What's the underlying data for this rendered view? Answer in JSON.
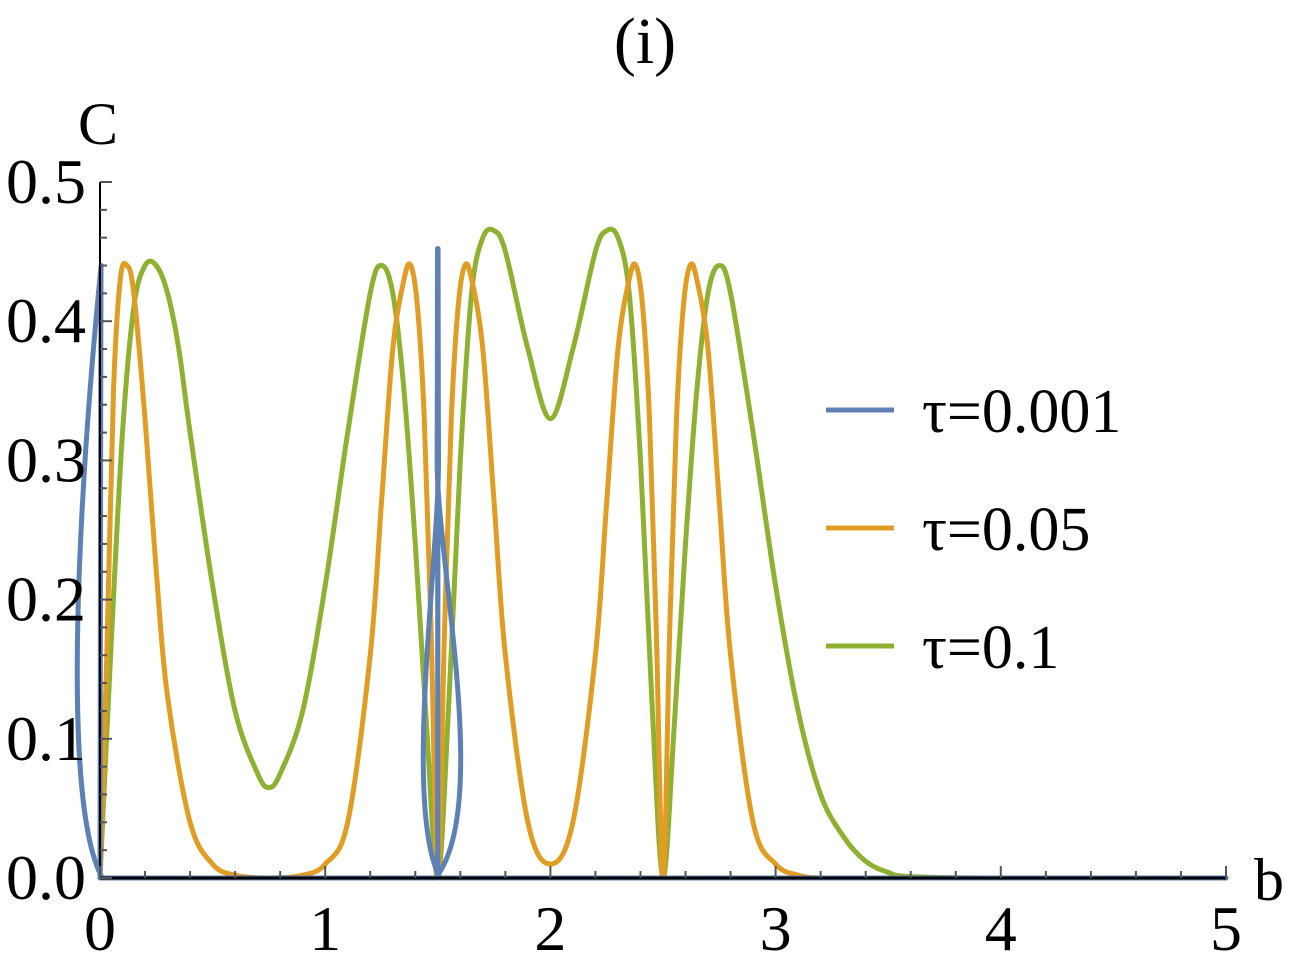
{
  "figure": {
    "panel_label": "(i)"
  },
  "chart_data": {
    "type": "line",
    "title": "(i)",
    "xlabel": "b",
    "ylabel": "C",
    "xlim": [
      0,
      5
    ],
    "ylim": [
      0,
      0.5
    ],
    "x_ticks": [
      0,
      1,
      2,
      3,
      4,
      5
    ],
    "x_tick_labels": [
      "0",
      "1",
      "2",
      "3",
      "4",
      "5"
    ],
    "y_ticks": [
      0.0,
      0.1,
      0.2,
      0.3,
      0.4,
      0.5
    ],
    "y_tick_labels": [
      "0.0",
      "0.1",
      "0.2",
      "0.3",
      "0.4",
      "0.5"
    ],
    "grid": false,
    "legend_position": "right",
    "series": [
      {
        "name": "τ=0.001",
        "color": "#5e81b5",
        "x": [
          0,
          0.005,
          0.01,
          1.49,
          1.497,
          1.499,
          1.5,
          1.501,
          1.503,
          1.51,
          2.49,
          2.5,
          2.51,
          5
        ],
        "y": [
          0,
          0.44,
          0,
          0,
          0.3,
          0.44,
          0,
          0.44,
          0.3,
          0,
          0,
          0,
          0,
          0
        ]
      },
      {
        "name": "τ=0.05",
        "color": "#e19c24",
        "x": [
          0,
          0.03,
          0.06,
          0.09,
          0.12,
          0.15,
          0.2,
          0.25,
          0.3,
          0.4,
          0.5,
          0.6,
          0.75,
          0.9,
          1.0,
          1.1,
          1.2,
          1.25,
          1.3,
          1.35,
          1.38,
          1.41,
          1.44,
          1.47,
          1.5,
          1.53,
          1.56,
          1.59,
          1.62,
          1.65,
          1.7,
          1.75,
          1.8,
          1.9,
          2.0,
          2.1,
          2.2,
          2.25,
          2.3,
          2.35,
          2.38,
          2.41,
          2.44,
          2.47,
          2.5,
          2.53,
          2.56,
          2.59,
          2.62,
          2.65,
          2.7,
          2.75,
          2.8,
          2.9,
          3.0,
          3.1,
          3.2,
          3.4,
          3.6,
          4.0,
          5.0
        ],
        "y": [
          0,
          0.16,
          0.35,
          0.43,
          0.44,
          0.42,
          0.33,
          0.22,
          0.13,
          0.04,
          0.01,
          0.002,
          0.0,
          0.002,
          0.01,
          0.04,
          0.16,
          0.27,
          0.38,
          0.43,
          0.44,
          0.41,
          0.33,
          0.18,
          0,
          0.18,
          0.33,
          0.41,
          0.44,
          0.43,
          0.38,
          0.27,
          0.16,
          0.04,
          0.01,
          0.04,
          0.16,
          0.27,
          0.38,
          0.43,
          0.44,
          0.41,
          0.33,
          0.18,
          0,
          0.18,
          0.33,
          0.41,
          0.44,
          0.43,
          0.38,
          0.27,
          0.16,
          0.04,
          0.01,
          0.002,
          0.0,
          0,
          0,
          0,
          0
        ]
      },
      {
        "name": "τ=0.1",
        "color": "#8fb131",
        "x": [
          0,
          0.05,
          0.1,
          0.15,
          0.2,
          0.25,
          0.3,
          0.35,
          0.4,
          0.5,
          0.6,
          0.7,
          0.75,
          0.8,
          0.9,
          1.0,
          1.1,
          1.2,
          1.25,
          1.3,
          1.35,
          1.4,
          1.45,
          1.5,
          1.55,
          1.6,
          1.65,
          1.7,
          1.75,
          1.8,
          1.9,
          2.0,
          2.1,
          2.2,
          2.25,
          2.3,
          2.35,
          2.4,
          2.45,
          2.5,
          2.55,
          2.6,
          2.65,
          2.7,
          2.75,
          2.8,
          2.9,
          3.0,
          3.1,
          3.2,
          3.3,
          3.4,
          3.5,
          3.6,
          4.0,
          5.0
        ],
        "y": [
          0,
          0.17,
          0.32,
          0.41,
          0.44,
          0.44,
          0.42,
          0.38,
          0.32,
          0.21,
          0.12,
          0.075,
          0.065,
          0.075,
          0.12,
          0.21,
          0.32,
          0.42,
          0.44,
          0.42,
          0.35,
          0.24,
          0.11,
          0,
          0.13,
          0.3,
          0.42,
          0.46,
          0.465,
          0.45,
          0.38,
          0.33,
          0.38,
          0.45,
          0.465,
          0.46,
          0.42,
          0.3,
          0.13,
          0,
          0.11,
          0.24,
          0.35,
          0.42,
          0.44,
          0.42,
          0.32,
          0.21,
          0.12,
          0.06,
          0.03,
          0.012,
          0.004,
          0.001,
          0,
          0
        ]
      }
    ]
  }
}
